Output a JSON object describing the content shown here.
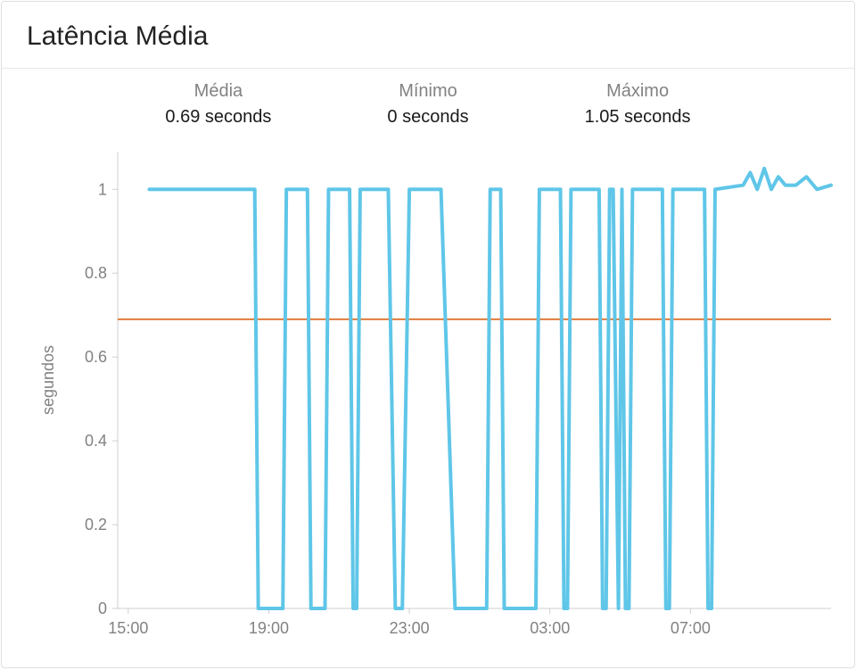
{
  "title": "Latência Média",
  "stats": {
    "mean": {
      "label": "Média",
      "value": "0.69 seconds"
    },
    "min": {
      "label": "Mínimo",
      "value": "0 seconds"
    },
    "max": {
      "label": "Máximo",
      "value": "1.05 seconds"
    }
  },
  "chart": {
    "type": "line",
    "y_axis": {
      "label": "segundos",
      "min": 0,
      "max": 1.09,
      "ticks": [
        0,
        0.2,
        0.4,
        0.6,
        0.8,
        1
      ],
      "label_fontsize": 18,
      "tick_fontsize": 18,
      "tick_color": "#828282"
    },
    "x_axis": {
      "min": 14.7,
      "max": 35.0,
      "ticks": [
        15,
        19,
        23,
        27,
        31
      ],
      "tick_labels": [
        "15:00",
        "19:00",
        "23:00",
        "03:00",
        "07:00"
      ],
      "tick_fontsize": 18,
      "tick_color": "#828282"
    },
    "background_color": "#ffffff",
    "axis_line_color": "#cfcfcf",
    "mean_line": {
      "value": 0.69,
      "color": "#e07b39",
      "width": 2
    },
    "series": {
      "color": "#5fc6e8",
      "width": 4,
      "points": [
        [
          15.6,
          1.0
        ],
        [
          18.6,
          1.0
        ],
        [
          18.7,
          0.0
        ],
        [
          19.4,
          0.0
        ],
        [
          19.5,
          1.0
        ],
        [
          20.1,
          1.0
        ],
        [
          20.2,
          0.0
        ],
        [
          20.6,
          0.0
        ],
        [
          20.7,
          1.0
        ],
        [
          21.3,
          1.0
        ],
        [
          21.4,
          0.0
        ],
        [
          21.5,
          0.0
        ],
        [
          21.6,
          1.0
        ],
        [
          22.4,
          1.0
        ],
        [
          22.6,
          0.0
        ],
        [
          22.8,
          0.0
        ],
        [
          23.0,
          1.0
        ],
        [
          23.9,
          1.0
        ],
        [
          24.3,
          0.0
        ],
        [
          25.2,
          0.0
        ],
        [
          25.3,
          1.0
        ],
        [
          25.6,
          1.0
        ],
        [
          25.7,
          0.0
        ],
        [
          26.6,
          0.0
        ],
        [
          26.7,
          1.0
        ],
        [
          27.3,
          1.0
        ],
        [
          27.4,
          0.0
        ],
        [
          27.5,
          0.0
        ],
        [
          27.6,
          1.0
        ],
        [
          28.4,
          1.0
        ],
        [
          28.5,
          0.0
        ],
        [
          28.6,
          0.0
        ],
        [
          28.7,
          1.0
        ],
        [
          28.8,
          1.0
        ],
        [
          28.95,
          0.0
        ],
        [
          29.05,
          1.0
        ],
        [
          29.15,
          0.0
        ],
        [
          29.25,
          0.0
        ],
        [
          29.35,
          1.0
        ],
        [
          30.2,
          1.0
        ],
        [
          30.3,
          0.0
        ],
        [
          30.4,
          0.0
        ],
        [
          30.5,
          1.0
        ],
        [
          31.4,
          1.0
        ],
        [
          31.5,
          0.0
        ],
        [
          31.6,
          0.0
        ],
        [
          31.7,
          1.0
        ],
        [
          32.5,
          1.01
        ],
        [
          32.7,
          1.04
        ],
        [
          32.9,
          1.0
        ],
        [
          33.1,
          1.05
        ],
        [
          33.3,
          1.0
        ],
        [
          33.5,
          1.03
        ],
        [
          33.7,
          1.01
        ],
        [
          34.0,
          1.01
        ],
        [
          34.3,
          1.03
        ],
        [
          34.6,
          1.0
        ],
        [
          35.0,
          1.01
        ]
      ]
    }
  }
}
